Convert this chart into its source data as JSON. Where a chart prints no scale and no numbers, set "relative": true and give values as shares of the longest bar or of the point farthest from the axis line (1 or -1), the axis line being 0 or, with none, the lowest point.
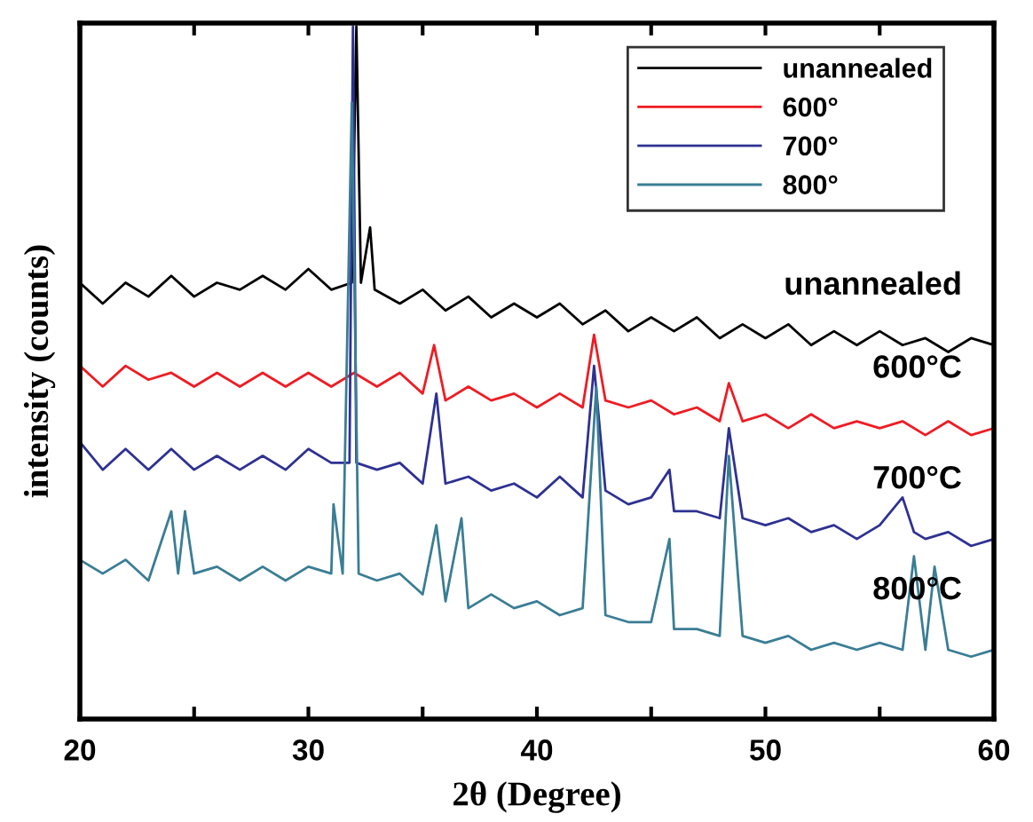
{
  "chart_data": {
    "type": "line",
    "relative": true,
    "xlabel": "2θ (Degree)",
    "ylabel": "intensity (counts)",
    "xlim": [
      20,
      60
    ],
    "xticks": [
      20,
      {
        "value": 25,
        "label": null
      },
      30,
      {
        "value": 35,
        "label": null
      },
      40,
      {
        "value": 45,
        "label": null
      },
      50,
      {
        "value": 55,
        "label": null
      },
      60
    ],
    "legend": "top right",
    "grid": false,
    "tick_labels": "x",
    "line_style": "solid",
    "marker": "none",
    "series": [
      {
        "name": "unannealed",
        "color": "#000000",
        "x": [
          20,
          21,
          22,
          23,
          24,
          25,
          26,
          27,
          28,
          29,
          30,
          31,
          31.9,
          32.1,
          32.3,
          32.7,
          32.9,
          34,
          35,
          36,
          37,
          38,
          39,
          40,
          41,
          42,
          43,
          44,
          45,
          46,
          47,
          48,
          49,
          50,
          51,
          52,
          53,
          54,
          55,
          56,
          57,
          58,
          59,
          60
        ],
        "values": [
          0.63,
          0.6,
          0.63,
          0.61,
          0.64,
          0.61,
          0.63,
          0.62,
          0.64,
          0.62,
          0.65,
          0.62,
          0.63,
          1.0,
          0.63,
          0.71,
          0.62,
          0.6,
          0.62,
          0.59,
          0.61,
          0.58,
          0.6,
          0.58,
          0.6,
          0.57,
          0.59,
          0.56,
          0.58,
          0.56,
          0.58,
          0.55,
          0.57,
          0.55,
          0.57,
          0.54,
          0.56,
          0.54,
          0.56,
          0.54,
          0.55,
          0.53,
          0.55,
          0.54
        ]
      },
      {
        "name": "600°",
        "color": "#ee1c24",
        "x": [
          20,
          21,
          22,
          23,
          24,
          25,
          26,
          27,
          28,
          29,
          30,
          31,
          32,
          33,
          34,
          35,
          35.5,
          36,
          37,
          38,
          39,
          40,
          41,
          42,
          42.5,
          43,
          44,
          45,
          46,
          47,
          48,
          48.4,
          49,
          50,
          51,
          52,
          53,
          54,
          55,
          56,
          57,
          58,
          59,
          60
        ],
        "values": [
          0.51,
          0.48,
          0.51,
          0.49,
          0.5,
          0.48,
          0.5,
          0.48,
          0.5,
          0.48,
          0.5,
          0.48,
          0.5,
          0.48,
          0.5,
          0.47,
          0.54,
          0.46,
          0.48,
          0.46,
          0.47,
          0.45,
          0.47,
          0.45,
          0.555,
          0.46,
          0.45,
          0.46,
          0.44,
          0.45,
          0.43,
          0.485,
          0.43,
          0.44,
          0.42,
          0.44,
          0.42,
          0.43,
          0.42,
          0.43,
          0.41,
          0.43,
          0.41,
          0.42
        ]
      },
      {
        "name": "700°",
        "color": "#2e3192",
        "x": [
          20,
          21,
          22,
          23,
          24,
          25,
          26,
          27,
          28,
          29,
          30,
          31,
          31.8,
          31.95,
          32.1,
          33,
          34,
          35,
          35.6,
          36,
          37,
          38,
          39,
          40,
          41,
          42,
          42.5,
          43,
          44,
          45,
          45.8,
          46,
          47,
          48,
          48.4,
          49,
          50,
          51,
          52,
          53,
          54,
          55,
          56,
          56.5,
          57,
          58,
          59,
          60
        ],
        "values": [
          0.4,
          0.36,
          0.39,
          0.36,
          0.39,
          0.36,
          0.38,
          0.36,
          0.38,
          0.36,
          0.39,
          0.37,
          0.37,
          1.0,
          0.37,
          0.36,
          0.37,
          0.34,
          0.47,
          0.34,
          0.35,
          0.33,
          0.34,
          0.32,
          0.35,
          0.32,
          0.51,
          0.33,
          0.31,
          0.32,
          0.36,
          0.3,
          0.3,
          0.29,
          0.42,
          0.29,
          0.28,
          0.29,
          0.27,
          0.28,
          0.26,
          0.28,
          0.32,
          0.27,
          0.26,
          0.27,
          0.25,
          0.26
        ]
      },
      {
        "name": "800°",
        "color": "#3a7d95",
        "x": [
          20,
          21,
          22,
          23,
          24,
          24.3,
          24.6,
          25,
          26,
          27,
          28,
          29,
          30,
          31,
          31.1,
          31.5,
          31.9,
          32.2,
          33,
          34,
          35,
          35.6,
          36,
          36.7,
          37,
          38,
          39,
          40,
          41,
          42,
          42.6,
          43,
          44,
          45,
          45.8,
          46,
          47,
          48,
          48.4,
          49,
          50,
          51,
          52,
          53,
          54,
          55,
          56,
          56.5,
          57,
          57.4,
          58,
          59,
          60
        ],
        "values": [
          0.23,
          0.21,
          0.23,
          0.2,
          0.3,
          0.21,
          0.3,
          0.21,
          0.22,
          0.2,
          0.22,
          0.2,
          0.22,
          0.21,
          0.31,
          0.21,
          0.89,
          0.21,
          0.2,
          0.21,
          0.18,
          0.28,
          0.17,
          0.29,
          0.16,
          0.18,
          0.16,
          0.17,
          0.15,
          0.16,
          0.48,
          0.15,
          0.14,
          0.14,
          0.26,
          0.13,
          0.13,
          0.12,
          0.38,
          0.12,
          0.11,
          0.12,
          0.1,
          0.11,
          0.1,
          0.11,
          0.1,
          0.235,
          0.1,
          0.22,
          0.1,
          0.09,
          0.1
        ]
      }
    ],
    "annotations": [
      "unannealed",
      "600°C",
      "700°C",
      "800°C"
    ]
  }
}
